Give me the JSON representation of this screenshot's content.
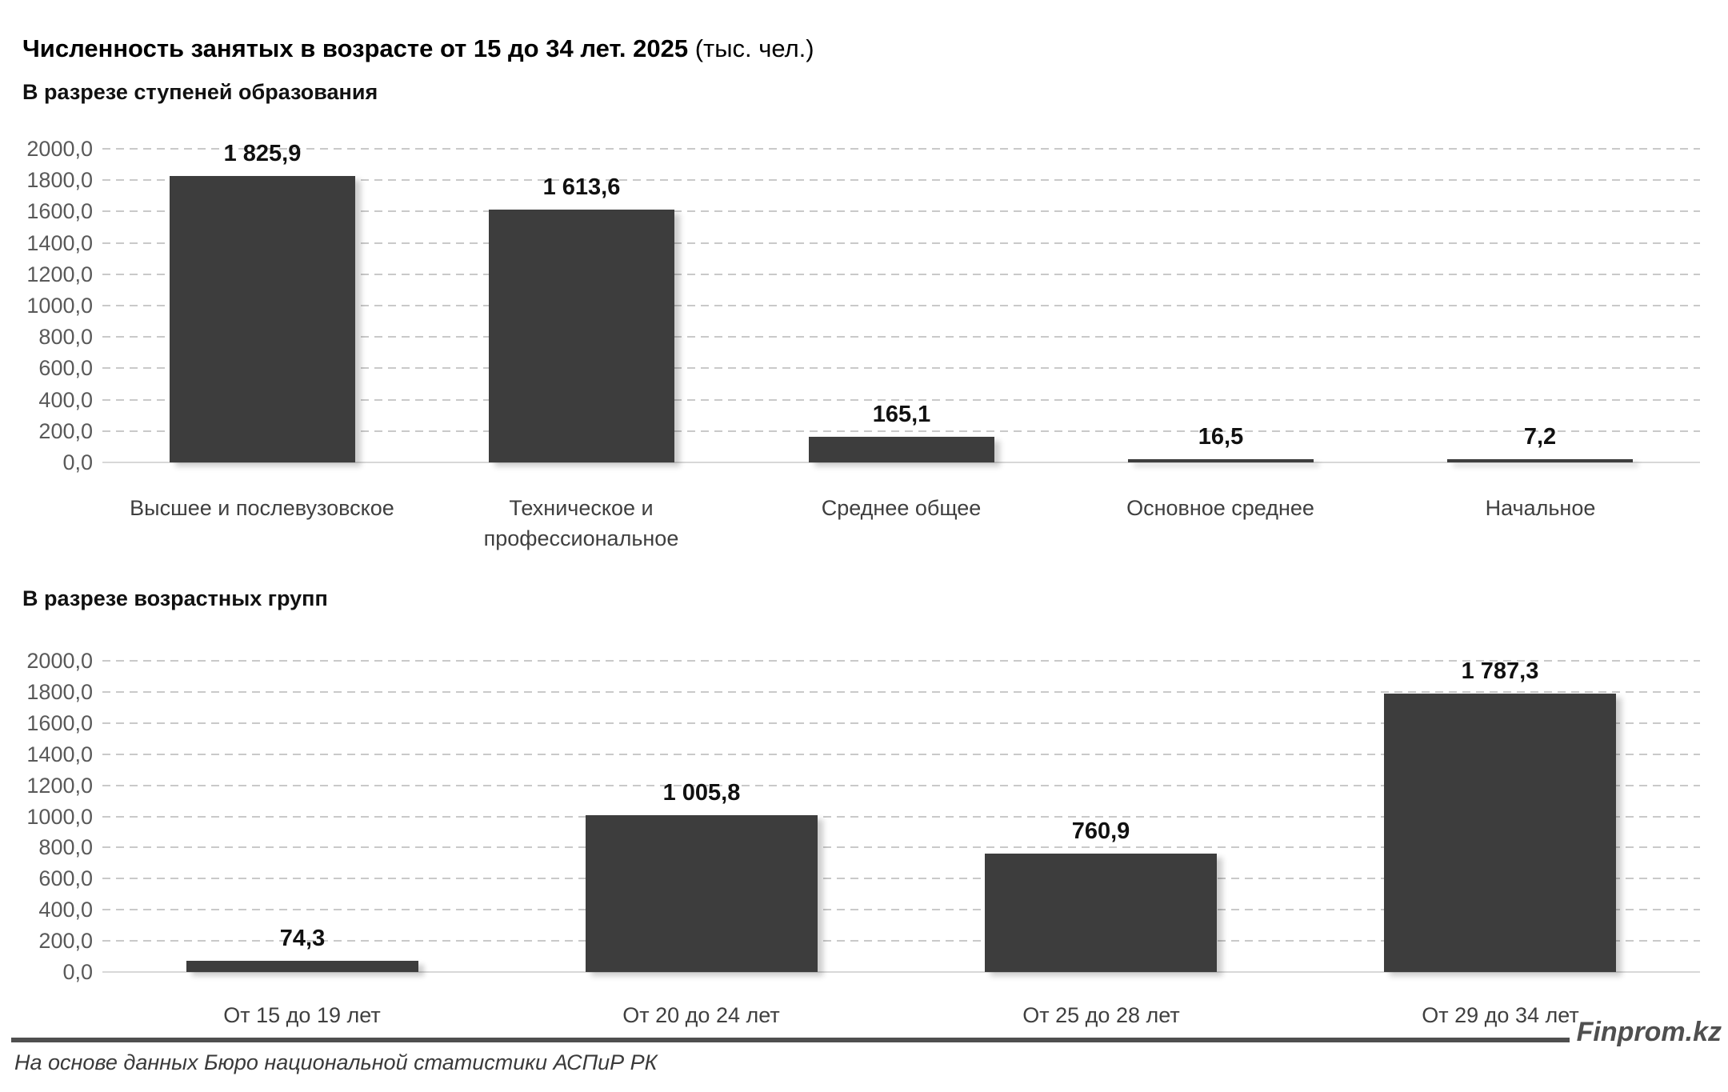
{
  "title": {
    "main": "Численность занятых в возрасте от 15 до 34 лет. 2025",
    "unit": " (тыс. чел.)"
  },
  "footer": {
    "source": "На основе данных Бюро национальной статистики АСПиР РК",
    "brand": "Finprom.kz"
  },
  "colors": {
    "bar": "#3d3d3d",
    "grid": "#c9c9c9",
    "axis": "#d8d8d8",
    "tick": "#595959",
    "divider": "#4f4f4f"
  },
  "chart_data": [
    {
      "type": "bar",
      "title": "В разрезе ступеней образования",
      "categories": [
        "Высшее и послевузовское",
        "Техническое и профессиональное",
        "Среднее общее",
        "Основное среднее",
        "Начальное"
      ],
      "values": [
        1825.9,
        1613.6,
        165.1,
        16.5,
        7.2
      ],
      "value_labels": [
        "1 825,9",
        "1 613,6",
        "165,1",
        "16,5",
        "7,2"
      ],
      "ylim": [
        0,
        2000
      ],
      "ytick_step": 200,
      "ytick_labels": [
        "2000,0",
        "1800,0",
        "1600,0",
        "1400,0",
        "1200,0",
        "1000,0",
        "800,0",
        "600,0",
        "400,0",
        "200,0",
        "0,0"
      ],
      "grid": true,
      "legend": "none",
      "xlabel": "",
      "ylabel": ""
    },
    {
      "type": "bar",
      "title": "В разрезе возрастных групп",
      "categories": [
        "От 15 до 19 лет",
        "От 20 до 24 лет",
        "От 25 до 28 лет",
        "От 29 до 34 лет"
      ],
      "values": [
        74.3,
        1005.8,
        760.9,
        1787.3
      ],
      "value_labels": [
        "74,3",
        "1 005,8",
        "760,9",
        "1 787,3"
      ],
      "ylim": [
        0,
        2000
      ],
      "ytick_step": 200,
      "ytick_labels": [
        "2000,0",
        "1800,0",
        "1600,0",
        "1400,0",
        "1200,0",
        "1000,0",
        "800,0",
        "600,0",
        "400,0",
        "200,0",
        "0,0"
      ],
      "grid": true,
      "legend": "none",
      "xlabel": "",
      "ylabel": ""
    }
  ]
}
